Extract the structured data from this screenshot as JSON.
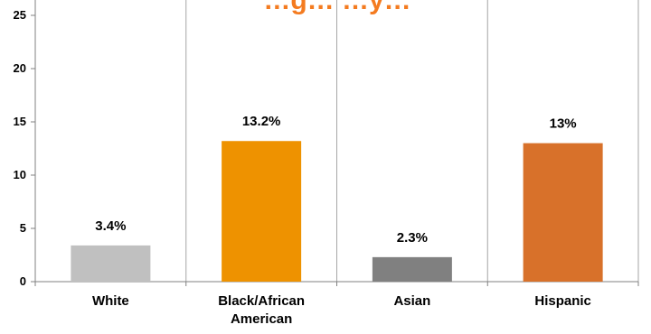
{
  "chart_data": {
    "type": "bar",
    "title": "…g… …y…",
    "categories": [
      [
        "White"
      ],
      [
        "Black/African",
        "American"
      ],
      [
        "Asian"
      ],
      [
        "Hispanic"
      ]
    ],
    "values": [
      3.4,
      13.2,
      2.3,
      13
    ],
    "value_labels": [
      "3.4%",
      "13.2%",
      "2.3%",
      "13%"
    ],
    "colors": [
      "#c0c0c0",
      "#ee9200",
      "#808080",
      "#d8712a"
    ],
    "title_color": "#f47b20",
    "ylim": [
      0,
      25
    ],
    "yticks": [
      0,
      5,
      10,
      15,
      20,
      25
    ],
    "grid": "vertical",
    "xlabel": "",
    "ylabel": ""
  }
}
